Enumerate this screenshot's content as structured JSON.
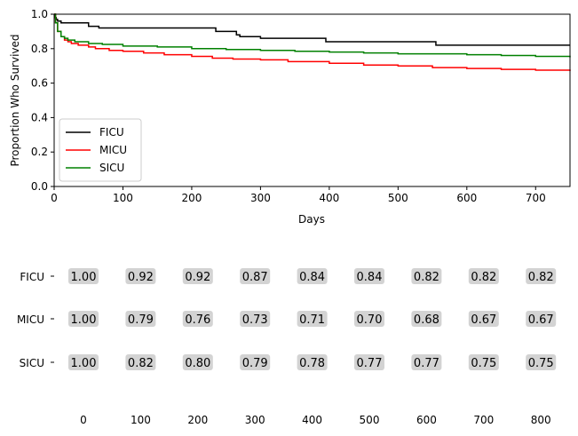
{
  "chart_data": [
    {
      "type": "line",
      "xlabel": "Days",
      "ylabel": "Proportion Who Survived",
      "xlim": [
        0,
        750
      ],
      "ylim": [
        0,
        1.0
      ],
      "xticks": [
        "0",
        "100",
        "200",
        "300",
        "400",
        "500",
        "600",
        "700"
      ],
      "yticks": [
        "0.0",
        "0.2",
        "0.4",
        "0.6",
        "0.8",
        "1.0"
      ],
      "grid": false,
      "legend_position": "lower-left",
      "series": [
        {
          "name": "FICU",
          "color": "#000000",
          "step": true,
          "x": [
            0,
            1,
            3,
            5,
            10,
            50,
            65,
            235,
            265,
            270,
            300,
            395,
            555,
            750
          ],
          "y": [
            1.0,
            0.98,
            0.97,
            0.96,
            0.95,
            0.93,
            0.92,
            0.9,
            0.88,
            0.87,
            0.86,
            0.84,
            0.82,
            0.82
          ]
        },
        {
          "name": "MICU",
          "color": "#ff0000",
          "step": true,
          "x": [
            0,
            2,
            5,
            10,
            15,
            20,
            25,
            35,
            50,
            60,
            80,
            100,
            130,
            160,
            200,
            230,
            260,
            300,
            340,
            400,
            450,
            500,
            550,
            600,
            650,
            700,
            750
          ],
          "y": [
            1.0,
            0.95,
            0.9,
            0.87,
            0.85,
            0.84,
            0.83,
            0.82,
            0.81,
            0.8,
            0.79,
            0.785,
            0.775,
            0.765,
            0.755,
            0.745,
            0.74,
            0.735,
            0.725,
            0.715,
            0.705,
            0.7,
            0.69,
            0.685,
            0.68,
            0.675,
            0.67
          ]
        },
        {
          "name": "SICU",
          "color": "#008000",
          "step": true,
          "x": [
            0,
            2,
            5,
            10,
            15,
            20,
            30,
            50,
            70,
            100,
            150,
            200,
            250,
            300,
            350,
            400,
            450,
            500,
            550,
            600,
            650,
            700,
            750
          ],
          "y": [
            1.0,
            0.95,
            0.9,
            0.87,
            0.86,
            0.85,
            0.84,
            0.83,
            0.825,
            0.815,
            0.81,
            0.8,
            0.795,
            0.79,
            0.785,
            0.78,
            0.775,
            0.77,
            0.77,
            0.765,
            0.76,
            0.755,
            0.75
          ]
        }
      ]
    },
    {
      "type": "table",
      "title": "",
      "x": [
        0,
        100,
        200,
        300,
        400,
        500,
        600,
        700,
        800
      ],
      "xticks": [
        "0",
        "100",
        "200",
        "300",
        "400",
        "500",
        "600",
        "700",
        "800"
      ],
      "rows": [
        {
          "name": "FICU",
          "values": [
            "1.00",
            "0.92",
            "0.92",
            "0.87",
            "0.84",
            "0.84",
            "0.82",
            "0.82",
            "0.82"
          ]
        },
        {
          "name": "MICU",
          "values": [
            "1.00",
            "0.79",
            "0.76",
            "0.73",
            "0.71",
            "0.70",
            "0.68",
            "0.67",
            "0.67"
          ]
        },
        {
          "name": "SICU",
          "values": [
            "1.00",
            "0.82",
            "0.80",
            "0.79",
            "0.78",
            "0.77",
            "0.77",
            "0.75",
            "0.75"
          ]
        }
      ],
      "cell_background": "#d3d3d3"
    }
  ]
}
